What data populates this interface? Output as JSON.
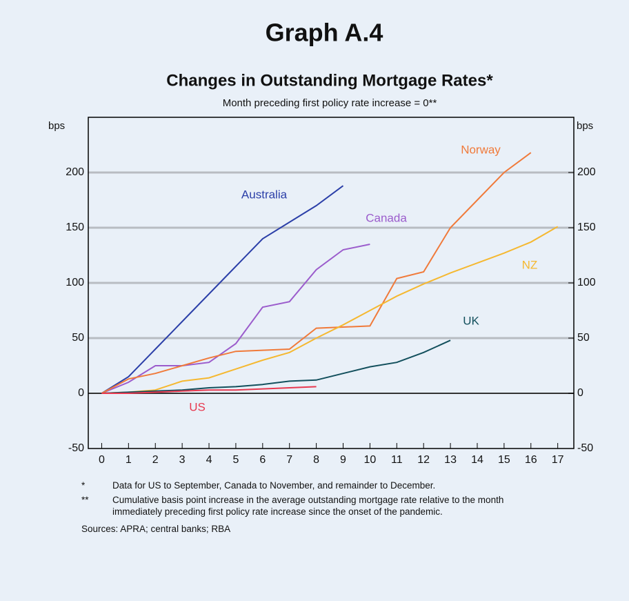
{
  "chart_data": {
    "type": "line",
    "title": "Graph A.4",
    "subtitle": "Changes in Outstanding Mortgage Rates*",
    "note": "Month preceding first policy rate increase = 0**",
    "ylabel": "bps",
    "y2label": "bps",
    "x": [
      0,
      1,
      2,
      3,
      4,
      5,
      6,
      7,
      8,
      9,
      10,
      11,
      12,
      13,
      14,
      15,
      16,
      17
    ],
    "xlim": [
      -0.5,
      17.6
    ],
    "xticks": [
      0,
      1,
      2,
      3,
      4,
      5,
      6,
      7,
      8,
      9,
      10,
      11,
      12,
      13,
      14,
      15,
      16,
      17
    ],
    "ylim": [
      -50,
      250
    ],
    "yticks": [
      -50,
      0,
      50,
      100,
      150,
      200
    ],
    "y2lim": [
      -50,
      250
    ],
    "y2ticks": [
      -50,
      0,
      50,
      100,
      150,
      200
    ],
    "grid": true,
    "series": [
      {
        "name": "Australia",
        "color": "#2b3fa8",
        "values": [
          0,
          15,
          40,
          65,
          90,
          115,
          140,
          155,
          170,
          188,
          null,
          null,
          null,
          null,
          null,
          null,
          null,
          null
        ]
      },
      {
        "name": "Canada",
        "color": "#9b5ccc",
        "values": [
          0,
          10,
          25,
          25,
          28,
          45,
          78,
          83,
          112,
          130,
          135,
          null,
          null,
          null,
          null,
          null,
          null,
          null
        ]
      },
      {
        "name": "Norway",
        "color": "#f07a3a",
        "values": [
          0,
          13,
          18,
          25,
          32,
          38,
          39,
          40,
          59,
          60,
          61,
          104,
          110,
          150,
          175,
          200,
          218,
          null
        ]
      },
      {
        "name": "NZ",
        "color": "#f5b830",
        "values": [
          0,
          1,
          3,
          11,
          14,
          22,
          30,
          37,
          50,
          62,
          75,
          88,
          99,
          109,
          118,
          127,
          137,
          151
        ]
      },
      {
        "name": "UK",
        "color": "#124f5c",
        "values": [
          0,
          1,
          2,
          3,
          5,
          6,
          8,
          11,
          12,
          18,
          24,
          28,
          37,
          48,
          null,
          null,
          null,
          null
        ]
      },
      {
        "name": "US",
        "color": "#e8384f",
        "values": [
          0,
          0,
          1,
          2,
          3,
          3,
          4,
          5,
          6,
          null,
          null,
          null,
          null,
          null,
          null,
          null,
          null,
          null
        ]
      }
    ],
    "footnotes": [
      {
        "marker": "*",
        "text": "Data for US to September, Canada to November, and remainder to December."
      },
      {
        "marker": "**",
        "text": "Cumulative basis point increase in the average outstanding mortgage rate relative to the month immediately preceding first policy rate increase since the onset of the pandemic."
      }
    ],
    "sources": "Sources: APRA; central banks; RBA"
  }
}
